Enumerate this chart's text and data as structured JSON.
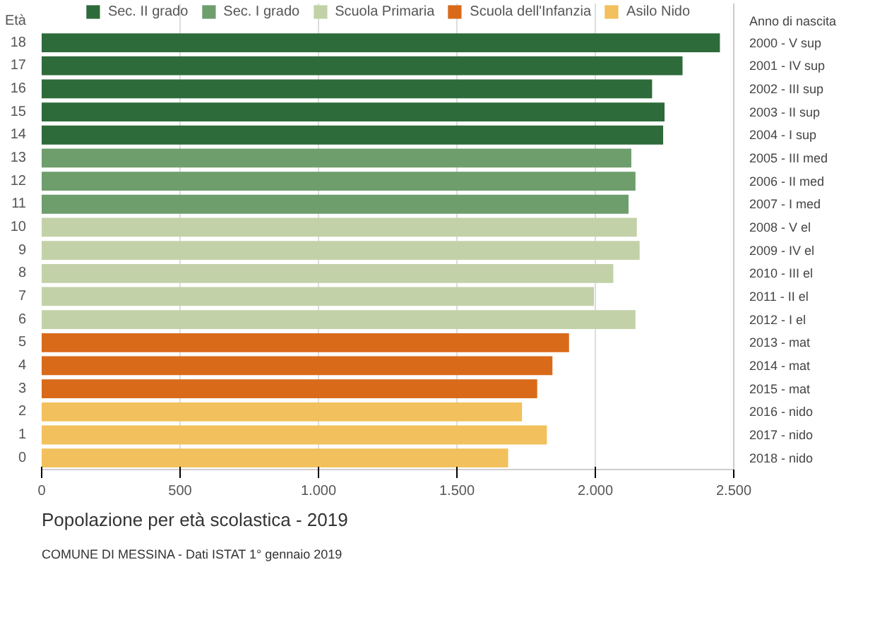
{
  "chart_data": {
    "type": "bar",
    "orientation": "horizontal",
    "title": "Popolazione per età scolastica - 2019",
    "ylabel": "Età",
    "y2label": "Anno di nascita",
    "annotations": [
      "COMUNE DI MESSINA - Dati ISTAT 1° gennaio 2019"
    ],
    "categories": [
      "18",
      "17",
      "16",
      "15",
      "14",
      "13",
      "12",
      "11",
      "10",
      "9",
      "8",
      "7",
      "6",
      "5",
      "4",
      "3",
      "2",
      "1",
      "0"
    ],
    "y2_categories": [
      "2000 - V sup",
      "2001 - IV sup",
      "2002 - III sup",
      "2003 - II sup",
      "2004 - I sup",
      "2005 - III med",
      "2006 - II med",
      "2007 - I med",
      "2008 - V el",
      "2009 - IV el",
      "2010 - III el",
      "2011 - II el",
      "2012 - I el",
      "2013 - mat",
      "2014 - mat",
      "2015 - mat",
      "2016 - nido",
      "2017 - nido",
      "2018 - nido"
    ],
    "series": [
      {
        "name": "Sec. II grado",
        "color": "#2e6b3a",
        "values": [
          2450,
          2315,
          2205,
          2250,
          2245,
          null,
          null,
          null,
          null,
          null,
          null,
          null,
          null,
          null,
          null,
          null,
          null,
          null,
          null
        ]
      },
      {
        "name": "Sec. I grado",
        "color": "#6e9e6c",
        "values": [
          null,
          null,
          null,
          null,
          null,
          2130,
          2145,
          2120,
          null,
          null,
          null,
          null,
          null,
          null,
          null,
          null,
          null,
          null,
          null
        ]
      },
      {
        "name": "Scuola Primaria",
        "color": "#c3d1a8",
        "values": [
          null,
          null,
          null,
          null,
          null,
          null,
          null,
          null,
          2150,
          2160,
          2065,
          1995,
          2145,
          null,
          null,
          null,
          null,
          null,
          null
        ]
      },
      {
        "name": "Scuola dell'Infanzia",
        "color": "#d96a1a",
        "values": [
          null,
          null,
          null,
          null,
          null,
          null,
          null,
          null,
          null,
          null,
          null,
          null,
          null,
          1905,
          1845,
          1790,
          null,
          null,
          null
        ]
      },
      {
        "name": "Asilo Nido",
        "color": "#f2c05c",
        "values": [
          null,
          null,
          null,
          null,
          null,
          null,
          null,
          null,
          null,
          null,
          null,
          null,
          null,
          null,
          null,
          null,
          1735,
          1825,
          1685
        ]
      }
    ],
    "xlim": [
      0,
      2500
    ],
    "xticks": [
      0,
      500,
      {
        "value": 1000,
        "label": "1.000"
      },
      {
        "value": 1500,
        "label": "1.500"
      },
      {
        "value": 2000,
        "label": "2.000"
      },
      {
        "value": 2500,
        "label": "2.500"
      }
    ],
    "grid": "x",
    "legend": "top"
  }
}
